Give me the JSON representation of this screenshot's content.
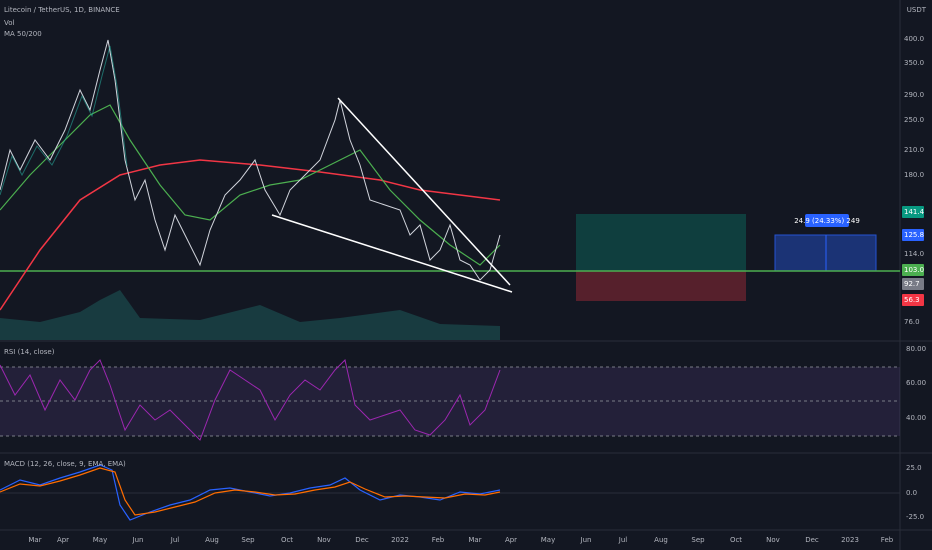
{
  "header": {
    "symbol": "Litecoin / TetherUS, 1D, BINANCE",
    "vol": "Vol",
    "ma": "MA 50/200",
    "currency": "USDT"
  },
  "drawings": {
    "measure_label": "24.9 (24.33%) 249"
  },
  "price_axis": {
    "labels": [
      "400.0",
      "350.0",
      "290.0",
      "250.0",
      "210.0",
      "180.0",
      "114.0",
      "76.0"
    ],
    "badges": [
      {
        "text": "141.4",
        "color": "#089981"
      },
      {
        "text": "125.8",
        "color": "#2962ff"
      },
      {
        "text": "103.0",
        "color": "#4caf50"
      },
      {
        "text": "92.7",
        "color": "#787b86"
      },
      {
        "text": "56.3",
        "color": "#f23645"
      }
    ]
  },
  "panes": {
    "rsi": {
      "title": "RSI (14, close)",
      "labels": [
        "80.00",
        "60.00",
        "40.00"
      ]
    },
    "macd": {
      "title": "MACD (12, 26, close, 9, EMA, EMA)",
      "labels": [
        "25.0",
        "0.0",
        "-25.0"
      ]
    }
  },
  "time_axis": [
    "Mar",
    "Apr",
    "May",
    "Jun",
    "Jul",
    "Aug",
    "Sep",
    "Oct",
    "Nov",
    "Dec",
    "2022",
    "Feb",
    "Mar",
    "Apr",
    "May",
    "Jun",
    "Jul",
    "Aug",
    "Sep",
    "Oct",
    "Nov",
    "Dec",
    "2023",
    "Feb"
  ]
}
